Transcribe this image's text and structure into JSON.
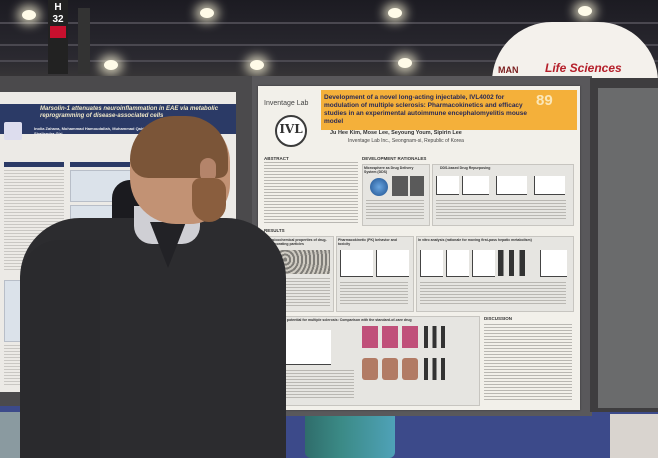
{
  "venue": {
    "aisle_letter": "H",
    "aisle_number": "32",
    "booth_brand_left": "MAN",
    "booth_brand": "Life Sciences"
  },
  "poster_left": {
    "title": "Marsolin-1 attenuates neuroinflammation in EAE via metabolic reprogramming of disease-associated cells",
    "authors": "Inolia Zahava, Mohammad Hamoudallah, Muhammad Qaid, Sayed Mo, Ramandeep Rattan, Shailendra Giri"
  },
  "poster_center": {
    "logo_text": "Inventage Lab",
    "logo_mark": "IVL",
    "title": "Development of a novel long-acting injectable, IVL4002 for modulation of multiple sclerosis: Pharmacokinetics and efficacy studies in an experimental autoimmune encephalomyelitis mouse model",
    "abstract_number": "89",
    "authors": "Ju Hee Kim, Mose Lee, Seyoung Youm, Sipirin Lee",
    "affiliation": "Inventage Lab Inc., Seongnam-si, Republic of Korea",
    "sections": {
      "abstract": "ABSTRACT",
      "rationale": "DEVELOPMENT RATIONALES",
      "dds": "DDS-based Drug Repurposing",
      "microsphere": "Microsphere as Drug Delivery System (DDS)",
      "results": "RESULTS",
      "physchem": "Physicochemical properties of drug-incorporating particles",
      "pk": "Pharmacokinetic (PK) behavior and toxicity",
      "invitro": "In vitro analysis (rationale for moving first-pass hepatic metabolism)",
      "therapeutic": "Therapeutic potential for multiple sclerosis: Comparison with the standard-of-care drug",
      "discussion": "DISCUSSION"
    }
  },
  "colors": {
    "title_band": "#f4b03a",
    "title_text": "#2a2a55",
    "left_title_bar": "#2b3a66",
    "booth_brand": "#b5202b",
    "carpet": "#3c4a8a"
  }
}
